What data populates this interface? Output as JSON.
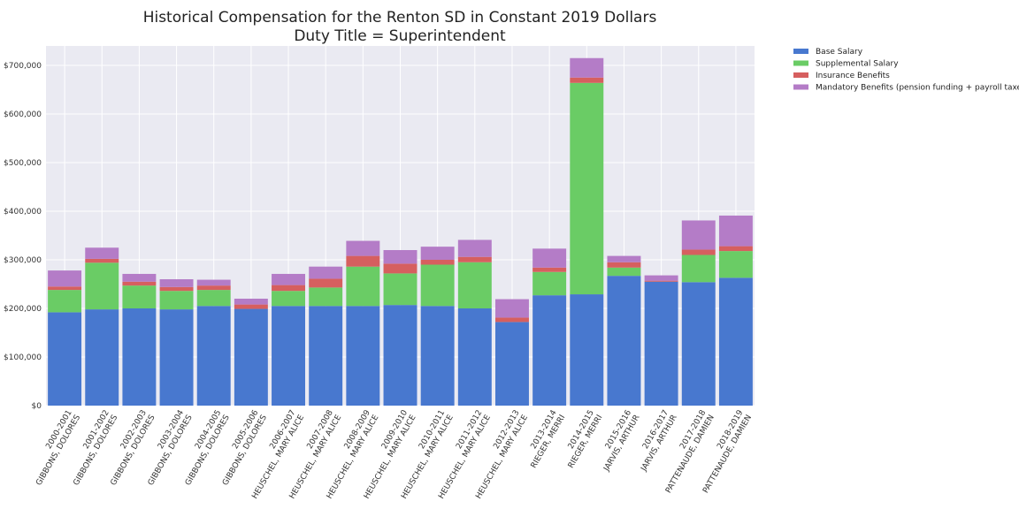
{
  "chart_data": {
    "type": "bar",
    "stacked": true,
    "title": "Historical Compensation for the Renton SD in Constant 2019 Dollars",
    "subtitle": "Duty Title = Superintendent",
    "xlabel": "",
    "ylabel": "",
    "ylim": [
      0,
      740000
    ],
    "yticks": [
      0,
      100000,
      200000,
      300000,
      400000,
      500000,
      600000,
      700000
    ],
    "ytick_labels": [
      "$0",
      "$100,000",
      "$200,000",
      "$300,000",
      "$400,000",
      "$500,000",
      "$600,000",
      "$700,000"
    ],
    "categories": [
      "2000-2001\nGIBBONS, DOLORES",
      "2001-2002\nGIBBONS, DOLORES",
      "2002-2003\nGIBBONS, DOLORES",
      "2003-2004\nGIBBONS, DOLORES",
      "2004-2005\nGIBBONS, DOLORES",
      "2005-2006\nGIBBONS, DOLORES",
      "2006-2007\nHEUSCHEL, MARY ALICE",
      "2007-2008\nHEUSCHEL, MARY ALICE",
      "2008-2009\nHEUSCHEL, MARY ALICE",
      "2009-2010\nHEUSCHEL, MARY ALICE",
      "2010-2011\nHEUSCHEL, MARY ALICE",
      "2011-2012\nHEUSCHEL, MARY ALICE",
      "2012-2013\nHEUSCHEL, MARY ALICE",
      "2013-2014\nRIEGER, MERRI",
      "2014-2015\nRIEGER, MERRI",
      "2015-2016\nJARVIS, ARTHUR",
      "2016-2017\nJARVIS, ARTHUR",
      "2017-2018\nPATTENAUDE, DAMIEN",
      "2018-2019\nPATTENAUDE, DAMIEN"
    ],
    "series": [
      {
        "name": "Base Salary",
        "color": "#4878cf",
        "values": [
          192000,
          198000,
          200000,
          198000,
          205000,
          199000,
          205000,
          205000,
          205000,
          207000,
          205000,
          200000,
          172000,
          227000,
          229000,
          267000,
          255000,
          254000,
          263000
        ]
      },
      {
        "name": "Supplemental Salary",
        "color": "#6acc65",
        "values": [
          46000,
          96000,
          47000,
          38000,
          33000,
          0,
          31000,
          38000,
          81000,
          65000,
          85000,
          95000,
          0,
          48000,
          435000,
          17000,
          0,
          56000,
          55000
        ]
      },
      {
        "name": "Insurance Benefits",
        "color": "#d65f5f",
        "values": [
          7000,
          8000,
          8000,
          8000,
          9000,
          9000,
          12000,
          18000,
          22000,
          20000,
          10000,
          11000,
          9000,
          9000,
          11000,
          11000,
          2000,
          11000,
          10000
        ]
      },
      {
        "name": "Mandatory Benefits (pension funding + payroll taxes)",
        "color": "#b47cc7",
        "values": [
          33000,
          23000,
          16000,
          16000,
          12000,
          12000,
          23000,
          25000,
          31000,
          28000,
          27000,
          35000,
          38000,
          39000,
          40000,
          13000,
          11000,
          60000,
          63000
        ]
      }
    ],
    "legend_position": "outside-right-top",
    "grid": true,
    "background": "#eaeaf2"
  }
}
